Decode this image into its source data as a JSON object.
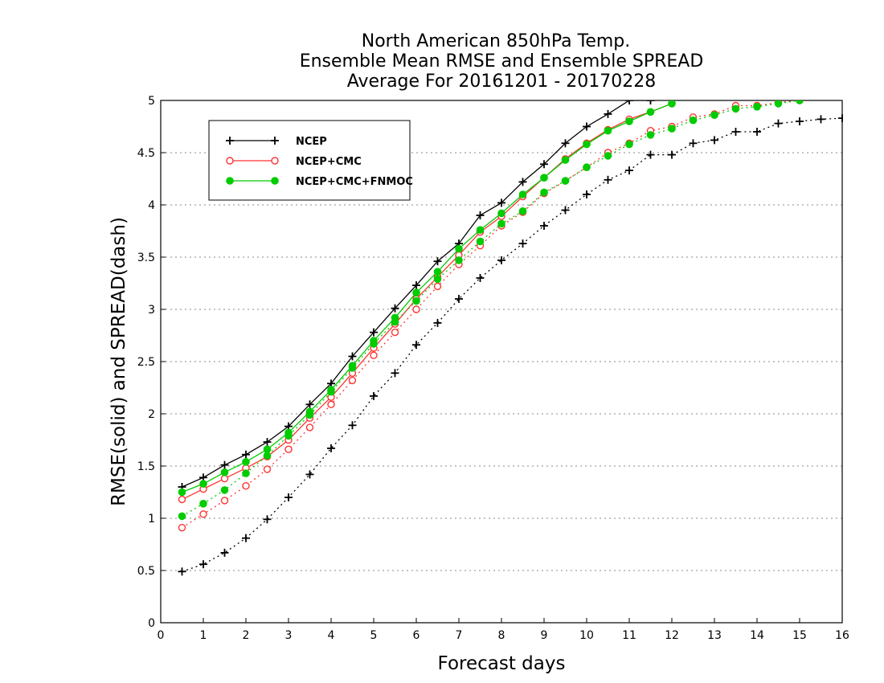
{
  "chart_data": {
    "type": "line",
    "title_lines": [
      "North American 850hPa Temp.",
      "Ensemble Mean RMSE and Ensemble SPREAD",
      "Average For 20161201 - 20170228"
    ],
    "xlabel": "Forecast days",
    "ylabel": "RMSE(solid) and SPREAD(dash)",
    "xlim": [
      0,
      16
    ],
    "ylim": [
      0,
      5
    ],
    "x_ticks": [
      "0",
      "1",
      "2",
      "3",
      "4",
      "5",
      "6",
      "7",
      "8",
      "9",
      "10",
      "11",
      "12",
      "13",
      "14",
      "15",
      "16"
    ],
    "y_ticks": [
      "0",
      "0.5",
      "1",
      "1.5",
      "2",
      "2.5",
      "3",
      "3.5",
      "4",
      "4.5",
      "5"
    ],
    "grid": "horizontal dotted",
    "legend_position": "top-left",
    "series": [
      {
        "name": "NCEP",
        "color": "#000000",
        "marker": "plus",
        "rmse": {
          "x": [
            0.5,
            1,
            1.5,
            2,
            2.5,
            3,
            3.5,
            4,
            4.5,
            5,
            5.5,
            6,
            6.5,
            7,
            7.5,
            8,
            8.5,
            9,
            9.5,
            10,
            10.5,
            11,
            11.5
          ],
          "y": [
            1.3,
            1.39,
            1.51,
            1.61,
            1.73,
            1.88,
            2.09,
            2.29,
            2.55,
            2.78,
            3.01,
            3.23,
            3.46,
            3.63,
            3.9,
            4.02,
            4.22,
            4.39,
            4.59,
            4.75,
            4.87,
            5.0,
            5.0
          ]
        },
        "spread": {
          "x": [
            0.5,
            1,
            1.5,
            2,
            2.5,
            3,
            3.5,
            4,
            4.5,
            5,
            5.5,
            6,
            6.5,
            7,
            7.5,
            8,
            8.5,
            9,
            9.5,
            10,
            10.5,
            11,
            11.5,
            12,
            12.5,
            13,
            13.5,
            14,
            14.5,
            15,
            15.5,
            16
          ],
          "y": [
            0.49,
            0.56,
            0.67,
            0.81,
            0.99,
            1.2,
            1.42,
            1.67,
            1.89,
            2.17,
            2.39,
            2.66,
            2.87,
            3.1,
            3.3,
            3.47,
            3.63,
            3.8,
            3.95,
            4.1,
            4.24,
            4.33,
            4.48,
            4.48,
            4.59,
            4.62,
            4.7,
            4.7,
            4.78,
            4.8,
            4.82,
            4.83
          ]
        }
      },
      {
        "name": "NCEP+CMC",
        "color": "#ff3333",
        "marker": "open-circle",
        "rmse": {
          "x": [
            0.5,
            1,
            1.5,
            2,
            2.5,
            3,
            3.5,
            4,
            4.5,
            5,
            5.5,
            6,
            6.5,
            7,
            7.5,
            8,
            8.5,
            9,
            9.5,
            10,
            10.5,
            11,
            11.5,
            12
          ],
          "y": [
            1.18,
            1.28,
            1.38,
            1.48,
            1.59,
            1.75,
            1.96,
            2.16,
            2.39,
            2.63,
            2.86,
            3.1,
            3.31,
            3.52,
            3.74,
            3.89,
            4.08,
            4.26,
            4.44,
            4.59,
            4.72,
            4.82,
            4.89,
            4.97
          ]
        },
        "spread": {
          "x": [
            0.5,
            1,
            1.5,
            2,
            2.5,
            3,
            3.5,
            4,
            4.5,
            5,
            5.5,
            6,
            6.5,
            7,
            7.5,
            8,
            8.5,
            9,
            9.5,
            10,
            10.5,
            11,
            11.5,
            12,
            12.5,
            13,
            13.5,
            14,
            14.5,
            15
          ],
          "y": [
            0.91,
            1.04,
            1.17,
            1.31,
            1.47,
            1.66,
            1.87,
            2.09,
            2.32,
            2.56,
            2.78,
            3.0,
            3.22,
            3.43,
            3.61,
            3.8,
            3.93,
            4.11,
            4.23,
            4.36,
            4.5,
            4.59,
            4.71,
            4.75,
            4.84,
            4.87,
            4.95,
            4.95,
            4.98,
            5.0
          ]
        }
      },
      {
        "name": "NCEP+CMC+FNMOC",
        "color": "#00cc00",
        "marker": "filled-circle",
        "rmse": {
          "x": [
            0.5,
            1,
            1.5,
            2,
            2.5,
            3,
            3.5,
            4,
            4.5,
            5,
            5.5,
            6,
            6.5,
            7,
            7.5,
            8,
            8.5,
            9,
            9.5,
            10,
            10.5,
            11,
            11.5,
            12
          ],
          "y": [
            1.25,
            1.33,
            1.44,
            1.54,
            1.66,
            1.82,
            2.02,
            2.23,
            2.46,
            2.7,
            2.92,
            3.16,
            3.36,
            3.58,
            3.76,
            3.92,
            4.1,
            4.26,
            4.43,
            4.58,
            4.71,
            4.8,
            4.89,
            4.97
          ]
        },
        "spread": {
          "x": [
            0.5,
            1,
            1.5,
            2,
            2.5,
            3,
            3.5,
            4,
            4.5,
            5,
            5.5,
            6,
            6.5,
            7,
            7.5,
            8,
            8.5,
            9,
            9.5,
            10,
            10.5,
            11,
            11.5,
            12,
            12.5,
            13,
            13.5,
            14,
            14.5,
            15
          ],
          "y": [
            1.02,
            1.14,
            1.27,
            1.43,
            1.6,
            1.79,
            1.99,
            2.21,
            2.44,
            2.67,
            2.88,
            3.08,
            3.29,
            3.47,
            3.65,
            3.82,
            3.94,
            4.12,
            4.23,
            4.36,
            4.47,
            4.58,
            4.67,
            4.73,
            4.81,
            4.86,
            4.92,
            4.94,
            4.97,
            5.0
          ]
        }
      }
    ]
  }
}
